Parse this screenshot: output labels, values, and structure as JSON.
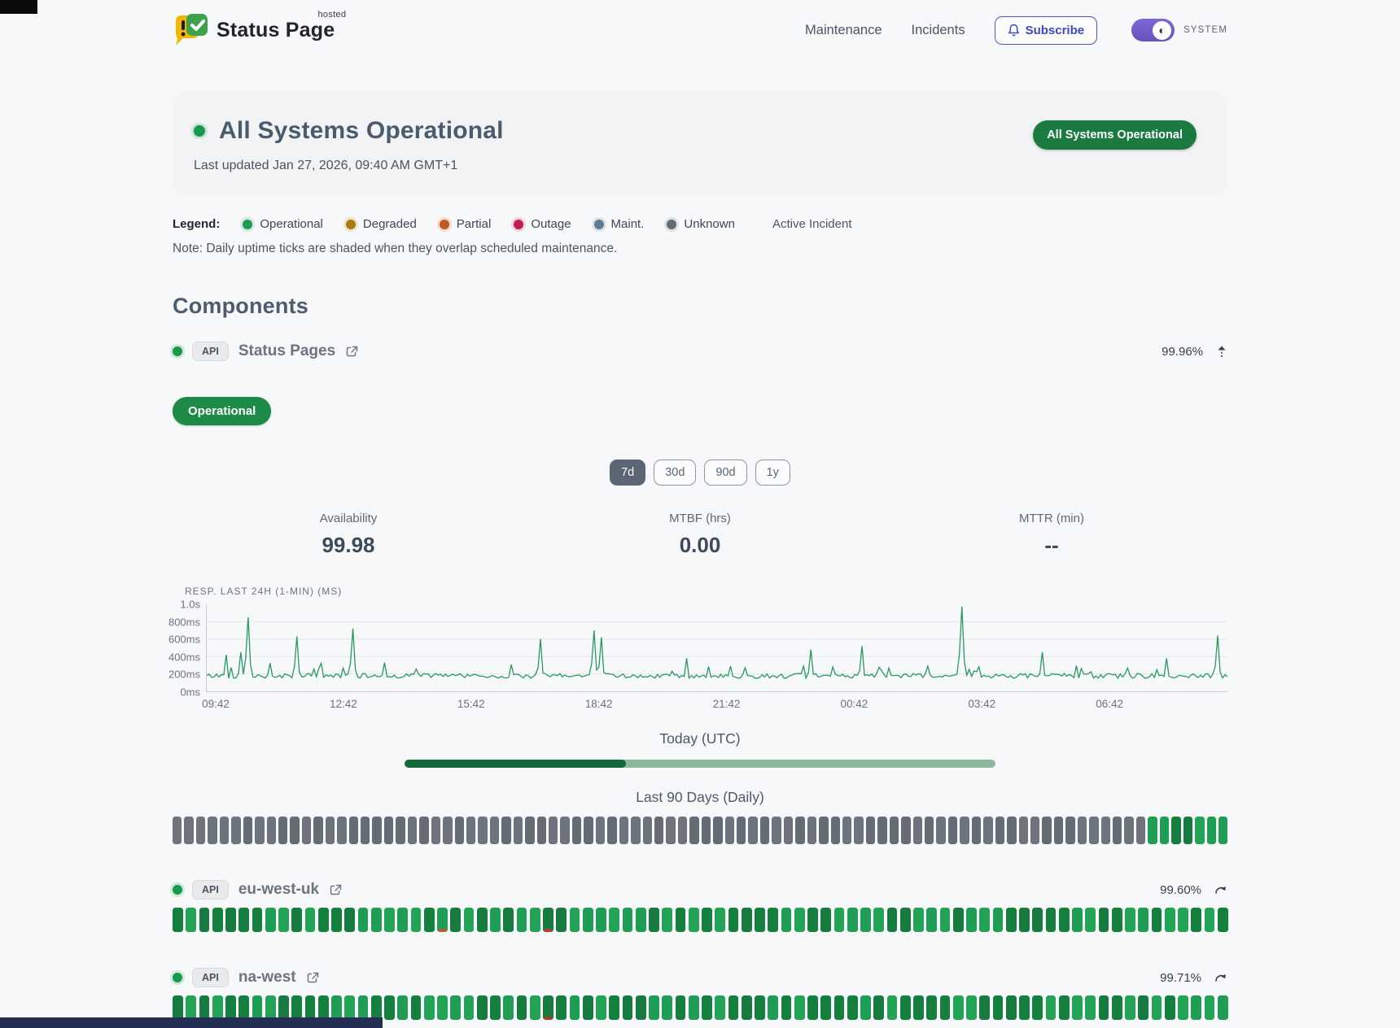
{
  "header": {
    "brand": {
      "name": "Status Page",
      "superscript": "hosted"
    },
    "nav": [
      {
        "label": "Maintenance"
      },
      {
        "label": "Incidents"
      }
    ],
    "subscribe_label": "Subscribe",
    "theme_label": "SYSTEM"
  },
  "hero": {
    "title": "All Systems Operational",
    "updated": "Last updated Jan 27, 2026, 09:40 AM GMT+1",
    "badge": "All Systems Operational"
  },
  "legend": {
    "label": "Legend:",
    "items": [
      {
        "label": "Operational",
        "color": "#1f9d55"
      },
      {
        "label": "Degraded",
        "color": "#a87b0c"
      },
      {
        "label": "Partial",
        "color": "#c2581d"
      },
      {
        "label": "Outage",
        "color": "#c01d4e"
      },
      {
        "label": "Maint.",
        "color": "#5b7e96"
      },
      {
        "label": "Unknown",
        "color": "#636b74"
      }
    ],
    "active_incident_label": "Active Incident",
    "note": "Note: Daily uptime ticks are shaded when they overlap scheduled maintenance."
  },
  "components": {
    "title": "Components",
    "status_pages": {
      "tag": "API",
      "name": "Status Pages",
      "uptime_pct": "99.96%",
      "status_badge": "Operational",
      "ranges": [
        {
          "label": "7d",
          "active": true
        },
        {
          "label": "30d",
          "active": false
        },
        {
          "label": "90d",
          "active": false
        },
        {
          "label": "1y",
          "active": false
        }
      ],
      "metrics": [
        {
          "label": "Availability",
          "value": "99.98"
        },
        {
          "label": "MTBF (hrs)",
          "value": "0.00"
        },
        {
          "label": "MTTR (min)",
          "value": "--"
        }
      ],
      "chart_data": {
        "type": "line",
        "title": "RESP. LAST 24H (1-MIN) (MS)",
        "color": "#27995f",
        "ylim": [
          0,
          1000
        ],
        "y_ticks": [
          "1.0s",
          "800ms",
          "600ms",
          "400ms",
          "200ms",
          "0ms"
        ],
        "x_ticks": [
          "09:42",
          "12:42",
          "15:42",
          "18:42",
          "21:42",
          "00:42",
          "03:42",
          "06:42"
        ],
        "points": 420,
        "seed": 42,
        "baseline_ms": [
          150,
          205
        ],
        "spikes": [
          {
            "t": 0.02,
            "v": 420
          },
          {
            "t": 0.034,
            "v": 450
          },
          {
            "t": 0.041,
            "v": 850
          },
          {
            "t": 0.088,
            "v": 630
          },
          {
            "t": 0.143,
            "v": 720
          },
          {
            "t": 0.174,
            "v": 330
          },
          {
            "t": 0.327,
            "v": 600
          },
          {
            "t": 0.38,
            "v": 700
          },
          {
            "t": 0.386,
            "v": 620
          },
          {
            "t": 0.47,
            "v": 380
          },
          {
            "t": 0.593,
            "v": 480
          },
          {
            "t": 0.641,
            "v": 520
          },
          {
            "t": 0.739,
            "v": 975
          },
          {
            "t": 0.818,
            "v": 450
          },
          {
            "t": 0.94,
            "v": 380
          },
          {
            "t": 0.99,
            "v": 640
          }
        ]
      },
      "today": {
        "label": "Today (UTC)",
        "progress_pct": 37.5,
        "track_color": "#8cb99d",
        "fill_color": "#16673a"
      },
      "history": {
        "label": "Last 90 Days (Daily)",
        "count": 90,
        "unknown_head": 83,
        "operational_tail": 7,
        "seed": 11
      }
    },
    "eu_west_uk": {
      "tag": "API",
      "name": "eu-west-uk",
      "uptime_pct": "99.60%",
      "ticks": {
        "count": 80,
        "seed": 5,
        "anomalies": [
          {
            "index": 20,
            "color": "#bf5a1f"
          },
          {
            "index": 28,
            "color": "#c0392b"
          }
        ]
      }
    },
    "na_west": {
      "tag": "API",
      "name": "na-west",
      "uptime_pct": "99.71%",
      "ticks": {
        "count": 80,
        "seed": 9,
        "anomalies": [
          {
            "index": 28,
            "color": "#b3362a"
          }
        ]
      }
    }
  },
  "colors": {
    "tick_unknown": [
      "#656c76",
      "#6d747e"
    ],
    "tick_operational": [
      "#177a3e",
      "#1f9d55",
      "#15803d",
      "#22a355"
    ]
  }
}
